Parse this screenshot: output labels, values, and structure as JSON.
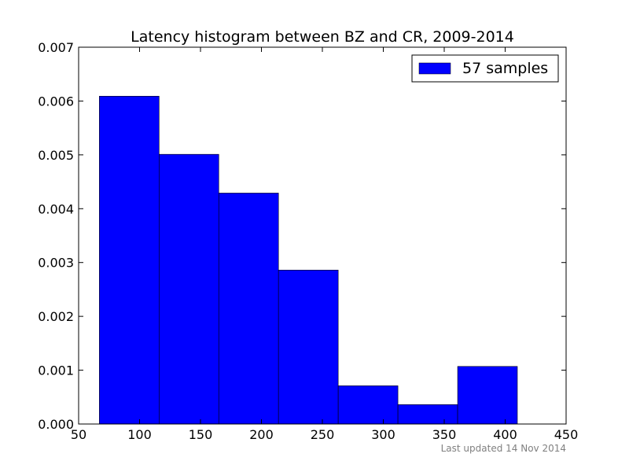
{
  "chart_data": {
    "type": "bar",
    "title": "Latency histogram between BZ and CR, 2009-2014",
    "xlabel": "",
    "ylabel": "",
    "bins": [
      {
        "x0": 67,
        "x1": 116,
        "value": 0.00609
      },
      {
        "x0": 116,
        "x1": 165,
        "value": 0.00501
      },
      {
        "x0": 165,
        "x1": 214,
        "value": 0.00429
      },
      {
        "x0": 214,
        "x1": 263,
        "value": 0.00286
      },
      {
        "x0": 263,
        "x1": 312,
        "value": 0.00071
      },
      {
        "x0": 312,
        "x1": 361,
        "value": 0.00036
      },
      {
        "x0": 361,
        "x1": 410,
        "value": 0.00107
      }
    ],
    "xlim": [
      50,
      450
    ],
    "ylim": [
      0,
      0.007
    ],
    "xticks": [
      50,
      100,
      150,
      200,
      250,
      300,
      350,
      400,
      450
    ],
    "yticks": [
      "0.000",
      "0.001",
      "0.002",
      "0.003",
      "0.004",
      "0.005",
      "0.006",
      "0.007"
    ],
    "bar_color": "#0000ff",
    "legend": {
      "label": "57 samples",
      "position": "top-right"
    },
    "grid": false
  },
  "footnote": "Last updated 14 Nov 2014"
}
